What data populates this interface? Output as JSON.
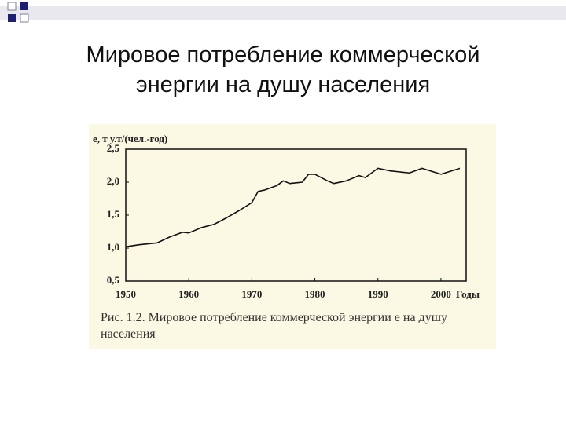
{
  "slide": {
    "title_lines": [
      "Мировое потребление коммерческой",
      "энергии на душу населения"
    ]
  },
  "chart_data": {
    "type": "line",
    "y_label": "e, т у.т/(чел.-год)",
    "x_label": "Годы",
    "caption": "Рис. 1.2. Мировое потребление коммерческой энергии e на душу населения",
    "x": [
      1950,
      1952,
      1955,
      1957,
      1959,
      1960,
      1962,
      1964,
      1966,
      1968,
      1970,
      1971,
      1972,
      1974,
      1975,
      1976,
      1978,
      1979,
      1980,
      1982,
      1983,
      1985,
      1987,
      1988,
      1990,
      1992,
      1995,
      1997,
      2000,
      2003
    ],
    "series": [
      {
        "name": "e",
        "color": "#111111",
        "values": [
          1.02,
          1.05,
          1.08,
          1.17,
          1.24,
          1.23,
          1.31,
          1.36,
          1.46,
          1.57,
          1.69,
          1.86,
          1.88,
          1.95,
          2.02,
          1.98,
          2.0,
          2.12,
          2.12,
          2.02,
          1.98,
          2.02,
          2.1,
          2.07,
          2.21,
          2.17,
          2.14,
          2.21,
          2.12,
          2.21
        ]
      }
    ],
    "xlim": [
      1950,
      2004
    ],
    "ylim": [
      0.5,
      2.5
    ],
    "xticks": [
      1950,
      1960,
      1970,
      1980,
      1990,
      2000
    ],
    "yticks": [
      {
        "value": 2.5,
        "label": "2,5"
      },
      {
        "value": 2.0,
        "label": "2,0"
      },
      {
        "value": 1.5,
        "label": "1,5"
      },
      {
        "value": 1.0,
        "label": "1,0"
      },
      {
        "value": 0.5,
        "label": "0,5"
      }
    ]
  }
}
